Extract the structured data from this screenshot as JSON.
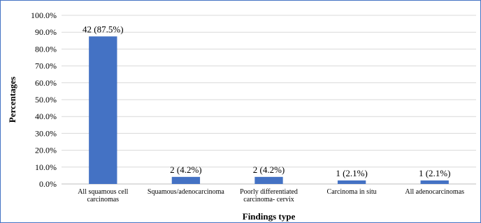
{
  "chart_data": {
    "type": "bar",
    "categories": [
      [
        "All squamous cell",
        "carcinomas"
      ],
      [
        "Squamous/adenocarcinoma"
      ],
      [
        "Poorly differentiated",
        "carcinoma- cervix"
      ],
      [
        "Carcinoma in situ"
      ],
      [
        "All adenocarcinomas"
      ]
    ],
    "values": [
      87.5,
      4.2,
      4.2,
      2.1,
      2.1
    ],
    "data_labels": [
      "42 (87.5%)",
      "2 (4.2%)",
      "2 (4.2%)",
      "1 (2.1%)",
      "1 (2.1%)"
    ],
    "xlabel": "Findings type",
    "ylabel": "Percentages",
    "ylim": [
      0,
      100
    ],
    "yticks": [
      0,
      10,
      20,
      30,
      40,
      50,
      60,
      70,
      80,
      90,
      100
    ],
    "ytick_labels": [
      "0.0%",
      "10.0%",
      "20.0%",
      "30.0%",
      "40.0%",
      "50.0%",
      "60.0%",
      "70.0%",
      "80.0%",
      "90.0%",
      "100.0%"
    ],
    "grid": true,
    "legend": "none",
    "bar_color": "#4472c4",
    "grid_color": "#d9d9d9",
    "border_color": "#4472c4"
  }
}
